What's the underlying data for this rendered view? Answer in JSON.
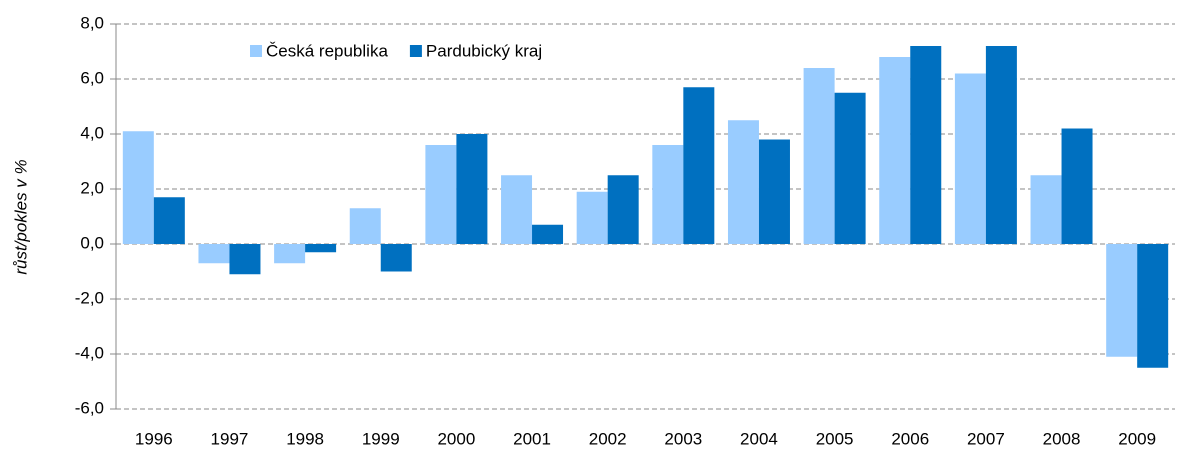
{
  "chart_data": {
    "type": "bar",
    "y_axis_label": "růst/pokles v %",
    "categories": [
      "1996",
      "1997",
      "1998",
      "1999",
      "2000",
      "2001",
      "2002",
      "2003",
      "2004",
      "2005",
      "2006",
      "2007",
      "2008",
      "2009"
    ],
    "series": [
      {
        "name": "Česká republika",
        "color": "#99ccff",
        "values": [
          4.1,
          -0.7,
          -0.7,
          1.3,
          3.6,
          2.5,
          1.9,
          3.6,
          4.5,
          6.4,
          6.8,
          6.2,
          2.5,
          -4.1
        ]
      },
      {
        "name": "Pardubický kraj",
        "color": "#0070c0",
        "values": [
          1.7,
          -1.1,
          -0.3,
          -1.0,
          4.0,
          0.7,
          2.5,
          5.7,
          3.8,
          5.5,
          7.2,
          7.2,
          4.2,
          -4.5
        ]
      }
    ],
    "ylim": [
      -6,
      8
    ],
    "yticks": [
      {
        "value": -6,
        "label": "-6,0"
      },
      {
        "value": -4,
        "label": "-4,0"
      },
      {
        "value": -2,
        "label": "-2,0"
      },
      {
        "value": 0,
        "label": "0,0"
      },
      {
        "value": 2,
        "label": "2,0"
      },
      {
        "value": 4,
        "label": "4,0"
      },
      {
        "value": 6,
        "label": "6,0"
      },
      {
        "value": 8,
        "label": "8,0"
      }
    ],
    "grid": true
  }
}
